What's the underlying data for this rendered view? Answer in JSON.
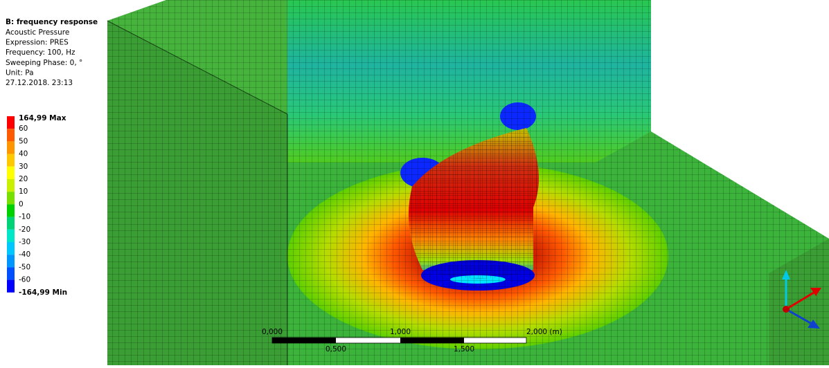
{
  "info": {
    "title": "B: frequency response",
    "lines": [
      "Acoustic Pressure",
      "Expression: PRES",
      "Frequency: 100, Hz",
      "Sweeping Phase: 0, °",
      "Unit: Pa",
      "27.12.2018. 23:13"
    ]
  },
  "legend": {
    "labels": [
      "164,99 Max",
      "60",
      "50",
      "40",
      "30",
      "20",
      "10",
      "0",
      "-10",
      "-20",
      "-30",
      "-40",
      "-50",
      "-60",
      "-164,99 Min"
    ],
    "colors": [
      "#ff0000",
      "#ff5a00",
      "#ff9600",
      "#ffc800",
      "#ffff00",
      "#c8f000",
      "#78e000",
      "#00d200",
      "#00d278",
      "#00e6c8",
      "#00c8ff",
      "#0096ff",
      "#0050ff",
      "#0000ff"
    ]
  },
  "scale": {
    "top": [
      "0,000",
      "1,000",
      "2,000 (m)"
    ],
    "bottom": [
      "0,500",
      "1,500"
    ]
  }
}
